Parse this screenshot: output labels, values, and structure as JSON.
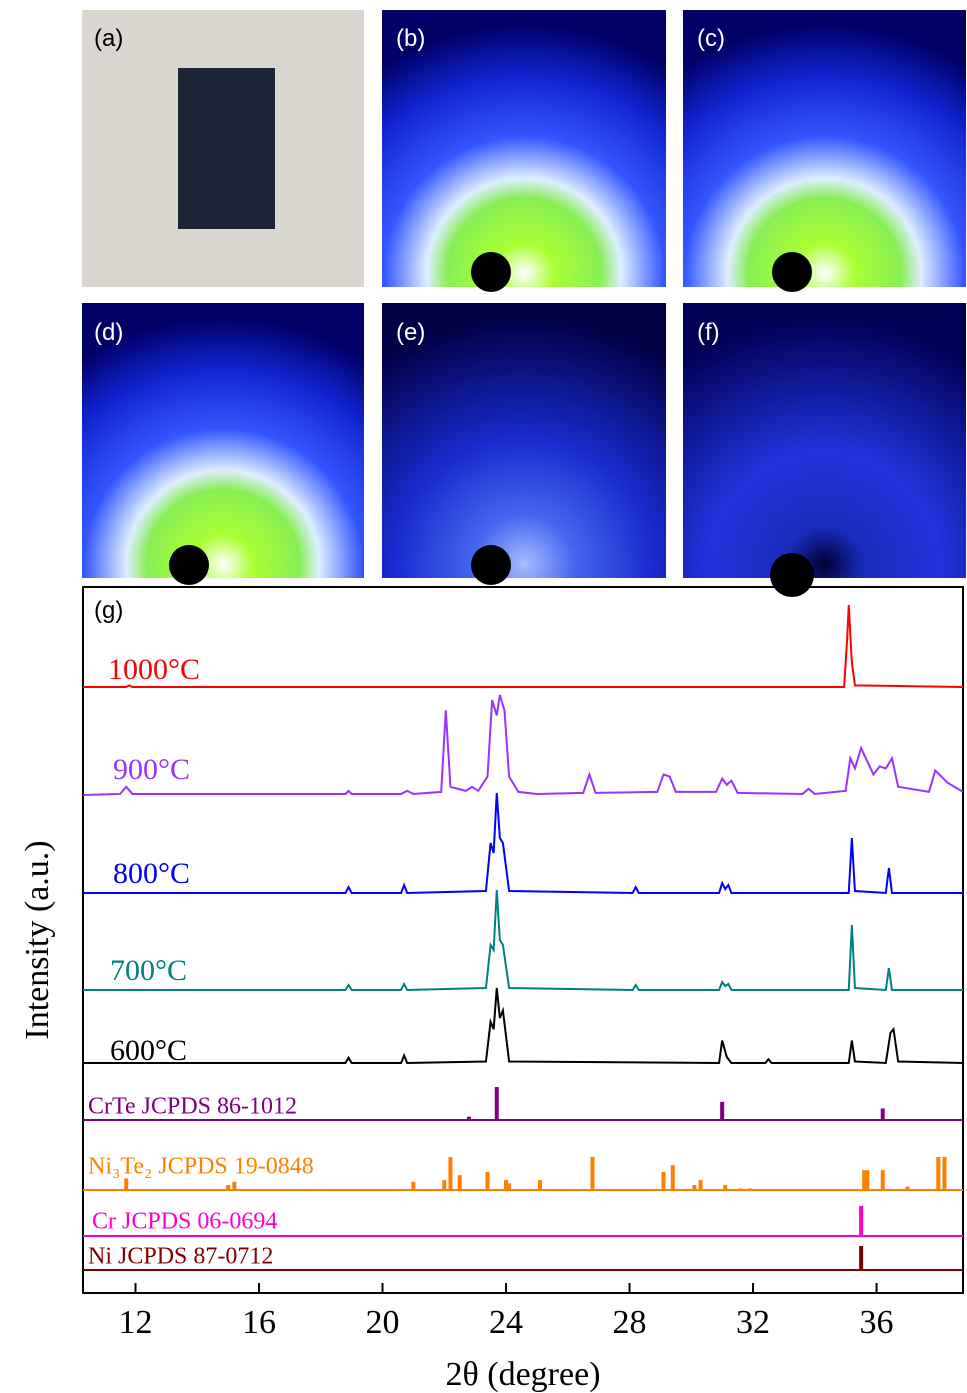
{
  "images": [
    "(a)",
    "(b)",
    "(c)",
    "(d)",
    "(e)",
    "(f)"
  ],
  "chart_data": {
    "type": "xrd-stack",
    "panel_label": "(g)",
    "xlabel": "2θ (degree)",
    "ylabel": "Intensity (a.u.)",
    "xlim": [
      10.3,
      38.8
    ],
    "xticks": [
      12,
      16,
      20,
      24,
      28,
      32,
      36
    ],
    "series": [
      {
        "name": "1000°C",
        "color": "#ff0000",
        "style": "line",
        "x": [
          10.3,
          11.7,
          11.8,
          11.9,
          14.8,
          20,
          34.95,
          35.05,
          35.1,
          35.2,
          35.3,
          38.8
        ],
        "values": [
          0,
          0,
          2,
          0,
          0,
          0,
          0,
          60,
          100,
          30,
          2,
          0
        ]
      },
      {
        "name": "900°C",
        "color": "#9933ff",
        "style": "line",
        "x": [
          10.3,
          11.5,
          11.7,
          11.9,
          15.0,
          18.8,
          18.9,
          19.0,
          20.6,
          20.8,
          21.0,
          21.9,
          22.05,
          22.2,
          22.7,
          22.9,
          23.1,
          23.4,
          23.55,
          23.7,
          23.8,
          23.95,
          24.1,
          24.4,
          25.0,
          26.5,
          26.7,
          26.9,
          28.9,
          29.1,
          29.3,
          29.5,
          30.8,
          31.0,
          31.15,
          31.3,
          31.5,
          33.6,
          33.8,
          34.0,
          35.0,
          35.15,
          35.3,
          35.5,
          35.7,
          35.9,
          36.1,
          36.3,
          36.5,
          36.7,
          37.7,
          37.9,
          38.1,
          38.3,
          38.8
        ],
        "values": [
          2,
          3,
          10,
          3,
          3,
          3,
          6,
          3,
          3,
          6,
          3,
          5,
          85,
          10,
          6,
          10,
          6,
          20,
          95,
          80,
          100,
          85,
          20,
          5,
          3,
          4,
          22,
          4,
          5,
          22,
          20,
          5,
          5,
          18,
          12,
          16,
          4,
          3,
          8,
          3,
          6,
          38,
          28,
          48,
          35,
          22,
          30,
          28,
          38,
          10,
          5,
          26,
          20,
          14,
          5
        ]
      },
      {
        "name": "800°C",
        "color": "#0000ff",
        "style": "line",
        "x": [
          10.3,
          18.8,
          18.9,
          19.0,
          20.6,
          20.7,
          20.8,
          23.35,
          23.5,
          23.6,
          23.7,
          23.8,
          23.9,
          24.1,
          28.1,
          28.2,
          28.3,
          30.9,
          31.0,
          31.1,
          31.2,
          31.3,
          35.1,
          35.2,
          35.3,
          36.3,
          36.4,
          36.5,
          38.8
        ],
        "values": [
          0,
          0,
          6,
          0,
          0,
          8,
          0,
          2,
          50,
          40,
          100,
          55,
          50,
          2,
          0,
          6,
          0,
          0,
          10,
          4,
          8,
          0,
          0,
          55,
          2,
          0,
          25,
          0,
          0
        ]
      },
      {
        "name": "700°C",
        "color": "#008080",
        "style": "line",
        "x": [
          10.3,
          18.8,
          18.9,
          19.0,
          20.6,
          20.7,
          20.8,
          23.35,
          23.5,
          23.6,
          23.7,
          23.8,
          23.9,
          24.1,
          28.1,
          28.2,
          28.3,
          30.9,
          31.0,
          31.1,
          31.2,
          31.3,
          35.1,
          35.2,
          35.3,
          36.3,
          36.4,
          36.5,
          38.8
        ],
        "values": [
          0,
          0,
          5,
          0,
          0,
          6,
          0,
          2,
          45,
          40,
          100,
          50,
          45,
          2,
          0,
          5,
          0,
          0,
          8,
          4,
          6,
          0,
          0,
          65,
          2,
          0,
          22,
          0,
          0
        ]
      },
      {
        "name": "600°C",
        "color": "#000000",
        "style": "line",
        "x": [
          10.3,
          18.8,
          18.9,
          19.0,
          20.6,
          20.7,
          20.8,
          23.35,
          23.5,
          23.6,
          23.7,
          23.8,
          23.9,
          24.1,
          30.9,
          31.0,
          31.15,
          31.3,
          32.4,
          32.5,
          32.6,
          35.1,
          35.2,
          35.3,
          36.3,
          36.45,
          36.55,
          36.7,
          38.8
        ],
        "values": [
          0,
          0,
          7,
          0,
          0,
          10,
          0,
          2,
          55,
          45,
          100,
          60,
          70,
          2,
          0,
          30,
          8,
          0,
          0,
          5,
          0,
          0,
          30,
          2,
          0,
          40,
          45,
          2,
          0
        ]
      },
      {
        "name": "CrTe JCPDS 86-1012",
        "color": "#800080",
        "style": "stick",
        "x": [
          20.6,
          22.8,
          23.7,
          31.0,
          36.2
        ],
        "values": [
          3,
          10,
          100,
          55,
          35
        ]
      },
      {
        "name": "Ni₃Te₂ JCPDS 19-0848",
        "color": "#ff8000",
        "style": "stick",
        "x": [
          11.7,
          15.0,
          15.2,
          21.0,
          22.0,
          22.2,
          22.5,
          23.4,
          24.0,
          24.1,
          25.1,
          26.8,
          29.1,
          29.4,
          30.1,
          30.3,
          31.1,
          31.6,
          31.9,
          35.6,
          35.7,
          36.2,
          37.0,
          38.0,
          38.2
        ],
        "values": [
          35,
          15,
          25,
          25,
          30,
          100,
          45,
          55,
          30,
          20,
          30,
          100,
          55,
          75,
          15,
          30,
          15,
          5,
          5,
          60,
          60,
          60,
          10,
          100,
          100
        ]
      },
      {
        "name": "Cr JCPDS 06-0694",
        "color": "#ff00cc",
        "style": "stick",
        "x": [
          35.5
        ],
        "values": [
          100
        ]
      },
      {
        "name": "Ni JCPDS 87-0712",
        "color": "#800000",
        "style": "stick",
        "x": [
          35.5
        ],
        "values": [
          100
        ]
      }
    ]
  }
}
